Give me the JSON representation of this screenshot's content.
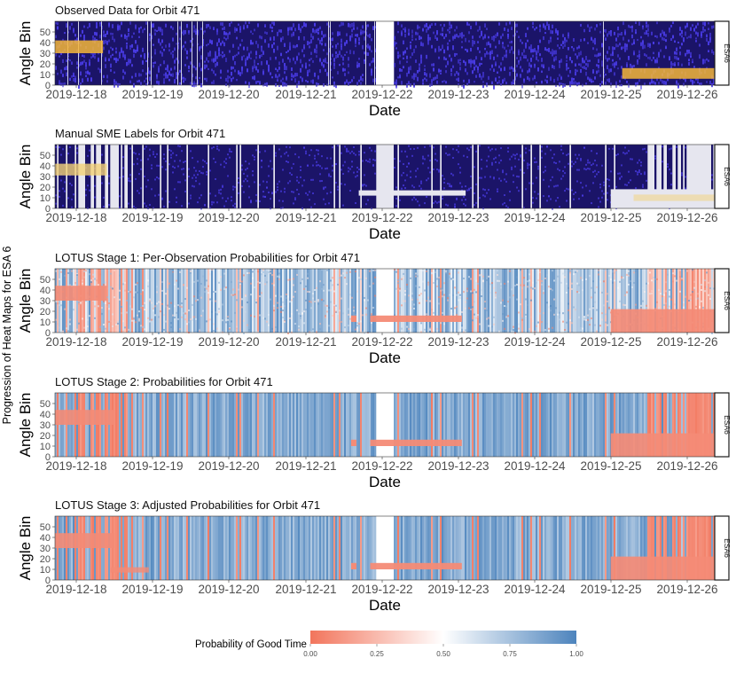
{
  "figure": {
    "side_title": "Progression of Heat Maps for ESA 6",
    "legend_title": "Probability of Good Time",
    "legend_ticks": [
      "0.00",
      "0.25",
      "0.50",
      "0.75",
      "1.00"
    ],
    "colors": {
      "low": "#f2755c",
      "mid": "#ffffff",
      "high": "#4d84bd",
      "obs_background": "#1b1468",
      "obs_points": "#4a3ce8",
      "obs_high": "#f5b63a",
      "obs_gap": "#e8e8ee",
      "label_gap": "#e6e6ef",
      "label_flag": "#f4d277"
    }
  },
  "chart_data": [
    {
      "type": "heatmap",
      "title": "Observed Data for Orbit 471",
      "xlabel": "Date",
      "ylabel": "Angle Bin",
      "strip": "ESA6",
      "x_ticks": [
        "2019-12-18",
        "2019-12-19",
        "2019-12-20",
        "2019-12-21",
        "2019-12-22",
        "2019-12-23",
        "2019-12-24",
        "2019-12-25",
        "2019-12-26"
      ],
      "y_ticks": [
        0,
        10,
        20,
        30,
        40,
        50
      ],
      "ylim": [
        0,
        60
      ],
      "xlim": [
        "2019-12-17T20:00",
        "2019-12-26T03:00"
      ],
      "high_count_regions": [
        {
          "x_start": "2019-12-17T20:00",
          "x_end": "2019-12-18T08:00",
          "y_start": 30,
          "y_end": 42
        },
        {
          "x_start": "2019-12-25T04:00",
          "x_end": "2019-12-26T03:00",
          "y_start": 6,
          "y_end": 16
        }
      ]
    },
    {
      "type": "heatmap",
      "title": "Manual SME Labels for Orbit 471",
      "xlabel": "Date",
      "ylabel": "Angle Bin",
      "strip": "ESA6",
      "x_ticks": [
        "2019-12-18",
        "2019-12-19",
        "2019-12-20",
        "2019-12-21",
        "2019-12-22",
        "2019-12-23",
        "2019-12-24",
        "2019-12-25",
        "2019-12-26"
      ],
      "y_ticks": [
        0,
        10,
        20,
        30,
        40,
        50
      ],
      "ylim": [
        0,
        60
      ]
    },
    {
      "type": "heatmap",
      "title": "LOTUS Stage 1: Per-Observation Probabilities for Orbit 471",
      "xlabel": "Date",
      "ylabel": "Angle Bin",
      "strip": "ESA6",
      "x_ticks": [
        "2019-12-18",
        "2019-12-19",
        "2019-12-20",
        "2019-12-21",
        "2019-12-22",
        "2019-12-23",
        "2019-12-24",
        "2019-12-25",
        "2019-12-26"
      ],
      "y_ticks": [
        0,
        10,
        20,
        30,
        40,
        50
      ],
      "ylim": [
        0,
        60
      ]
    },
    {
      "type": "heatmap",
      "title": "LOTUS Stage 2: Probabilities for Orbit 471",
      "xlabel": "Date",
      "ylabel": "Angle Bin",
      "strip": "ESA6",
      "x_ticks": [
        "2019-12-18",
        "2019-12-19",
        "2019-12-20",
        "2019-12-21",
        "2019-12-22",
        "2019-12-23",
        "2019-12-24",
        "2019-12-25",
        "2019-12-26"
      ],
      "y_ticks": [
        0,
        10,
        20,
        30,
        40,
        50
      ],
      "ylim": [
        0,
        60
      ]
    },
    {
      "type": "heatmap",
      "title": "LOTUS Stage 3: Adjusted Probabilities for Orbit 471",
      "xlabel": "Date",
      "ylabel": "Angle Bin",
      "strip": "ESA6",
      "x_ticks": [
        "2019-12-18",
        "2019-12-19",
        "2019-12-20",
        "2019-12-21",
        "2019-12-22",
        "2019-12-23",
        "2019-12-24",
        "2019-12-25",
        "2019-12-26"
      ],
      "y_ticks": [
        0,
        10,
        20,
        30,
        40,
        50
      ],
      "ylim": [
        0,
        60
      ]
    }
  ]
}
